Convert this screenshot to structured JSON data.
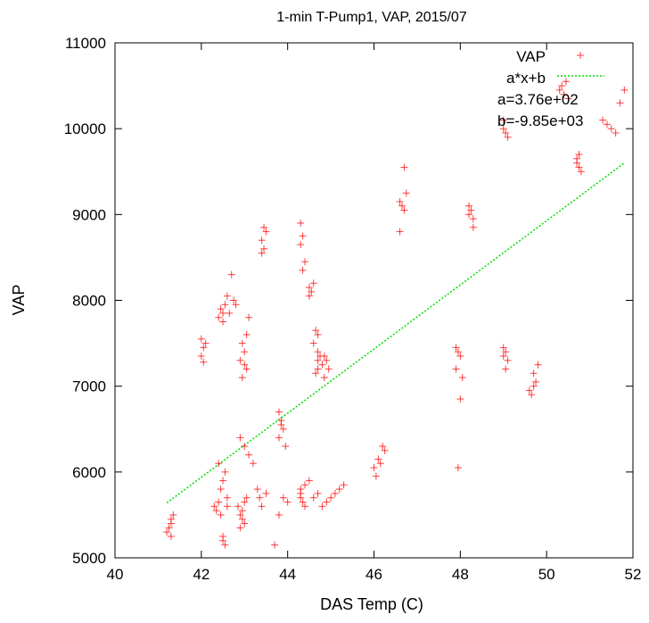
{
  "chart_data": {
    "type": "scatter",
    "title": "1-min T-Pump1, VAP, 2015/07",
    "xlabel": "DAS Temp (C)",
    "ylabel": "VAP",
    "xlim": [
      40,
      52
    ],
    "ylim": [
      5000,
      11000
    ],
    "xticks": [
      "40",
      "42",
      "44",
      "46",
      "48",
      "50",
      "52"
    ],
    "yticks": [
      "5000",
      "6000",
      "7000",
      "8000",
      "9000",
      "10000",
      "11000"
    ],
    "grid": false,
    "legend_position": "top-right",
    "colors": {
      "points": "#ff0000",
      "fit": "#00dd00"
    },
    "series": [
      {
        "name": "VAP",
        "marker": "plus",
        "x": [
          41.2,
          41.3,
          41.3,
          41.25,
          41.35,
          41.3,
          42.0,
          42.05,
          42.0,
          42.1,
          42.05,
          42.4,
          42.5,
          42.45,
          42.55,
          42.6,
          42.5,
          42.7,
          42.65,
          42.75,
          42.8,
          42.3,
          42.35,
          42.4,
          42.45,
          42.5,
          42.55,
          42.6,
          42.45,
          42.5,
          42.4,
          42.55,
          42.6,
          42.5,
          42.9,
          42.95,
          43.0,
          42.85,
          42.95,
          43.05,
          43.0,
          42.9,
          42.95,
          43.0,
          42.9,
          43.05,
          43.0,
          42.95,
          43.1,
          43.05,
          42.9,
          43.0,
          43.1,
          43.2,
          43.3,
          43.35,
          43.4,
          43.5,
          43.4,
          43.45,
          43.4,
          43.5,
          43.45,
          43.8,
          43.85,
          43.9,
          43.8,
          43.95,
          43.85,
          43.9,
          44.0,
          43.7,
          43.8,
          44.3,
          44.35,
          44.3,
          44.4,
          44.35,
          44.3,
          44.35,
          44.4,
          44.3,
          44.5,
          44.55,
          44.6,
          44.5,
          44.65,
          44.7,
          44.6,
          44.7,
          44.7,
          44.75,
          44.7,
          44.65,
          44.8,
          44.85,
          44.9,
          44.95,
          44.85,
          44.3,
          44.4,
          44.5,
          44.6,
          44.7,
          44.8,
          44.9,
          45.0,
          45.1,
          45.2,
          45.3,
          46.0,
          46.1,
          46.2,
          46.25,
          46.15,
          46.05,
          46.6,
          46.65,
          46.7,
          46.75,
          46.6,
          46.7,
          47.9,
          47.95,
          48.0,
          47.9,
          48.05,
          48.0,
          47.95,
          48.2,
          48.25,
          48.3,
          48.2,
          48.3,
          49.0,
          49.05,
          49.0,
          49.1,
          49.05,
          49.6,
          49.7,
          49.65,
          49.75,
          49.7,
          49.8,
          49.0,
          49.05,
          49.1,
          49.0,
          50.3,
          50.4,
          50.5,
          50.35,
          50.45,
          50.7,
          50.75,
          50.8,
          50.7,
          50.75,
          51.3,
          51.4,
          51.5,
          51.6,
          51.7,
          51.8
        ],
        "y": [
          5300,
          5400,
          5450,
          5350,
          5500,
          5250,
          7550,
          7450,
          7350,
          7500,
          7280,
          7800,
          7750,
          7900,
          7950,
          8050,
          7850,
          8300,
          7850,
          8000,
          7950,
          5600,
          5550,
          5650,
          5500,
          5200,
          5150,
          5700,
          5800,
          5250,
          6100,
          6000,
          5600,
          5900,
          5500,
          5450,
          5400,
          5600,
          5550,
          5700,
          5650,
          5350,
          7500,
          7400,
          7300,
          7200,
          7250,
          7100,
          7800,
          7600,
          6400,
          6300,
          6200,
          6100,
          5800,
          5700,
          5600,
          5750,
          8700,
          8600,
          8550,
          8800,
          8850,
          6700,
          6600,
          6500,
          6400,
          6300,
          6550,
          5700,
          5650,
          5150,
          5500,
          8900,
          8750,
          8650,
          8450,
          8350,
          5700,
          5650,
          5600,
          5750,
          8150,
          8100,
          8200,
          8050,
          7650,
          7600,
          7500,
          7400,
          7300,
          7350,
          7200,
          7150,
          7250,
          7350,
          7300,
          7200,
          7100,
          5800,
          5850,
          5900,
          5700,
          5750,
          5600,
          5650,
          5700,
          5750,
          5800,
          5850,
          6050,
          6150,
          6300,
          6250,
          6100,
          5950,
          9150,
          9100,
          9050,
          9250,
          8800,
          9550,
          7450,
          7400,
          7350,
          7200,
          7100,
          6850,
          6050,
          9100,
          9050,
          8950,
          9000,
          8850,
          7450,
          7400,
          7350,
          7300,
          7200,
          6950,
          7000,
          6900,
          7050,
          7150,
          7250,
          10000,
          9950,
          9900,
          10100,
          10450,
          10400,
          10350,
          10500,
          10550,
          9600,
          9550,
          9500,
          9650,
          9700,
          10100,
          10050,
          10000,
          9950,
          10300,
          10450
        ]
      },
      {
        "name": "a*x+b",
        "type": "line",
        "style": "dotted",
        "x": [
          41.2,
          51.8
        ],
        "y": [
          5640,
          9600
        ]
      }
    ],
    "fit_params": [
      "a=3.76e+02",
      "b=-9.85e+03"
    ]
  }
}
